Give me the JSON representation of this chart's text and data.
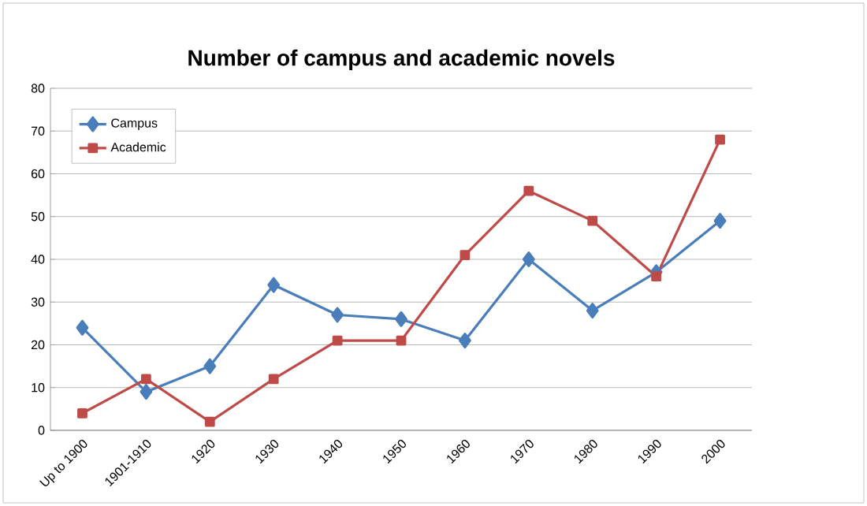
{
  "chart_data": {
    "type": "line",
    "title": "**Number of campus and academic novels**",
    "categories": [
      "Up to 1900",
      "1901-1910",
      "1920",
      "1930",
      "1940",
      "1950",
      "1960",
      "1970",
      "1980",
      "1990",
      "2000"
    ],
    "series": [
      {
        "name": "Campus",
        "color": "#4a7ebb",
        "marker": "diamond",
        "values": [
          24,
          9,
          15,
          34,
          27,
          26,
          21,
          40,
          28,
          37,
          49
        ]
      },
      {
        "name": "Academic",
        "color": "#be4b48",
        "marker": "square",
        "values": [
          4,
          12,
          2,
          12,
          21,
          21,
          41,
          56,
          49,
          36,
          68
        ]
      }
    ],
    "ylim": [
      0,
      80
    ],
    "yticks": [
      0,
      10,
      20,
      30,
      40,
      50,
      60,
      70,
      80
    ],
    "grid": "y",
    "legend": "top left",
    "line_style": "solid"
  }
}
